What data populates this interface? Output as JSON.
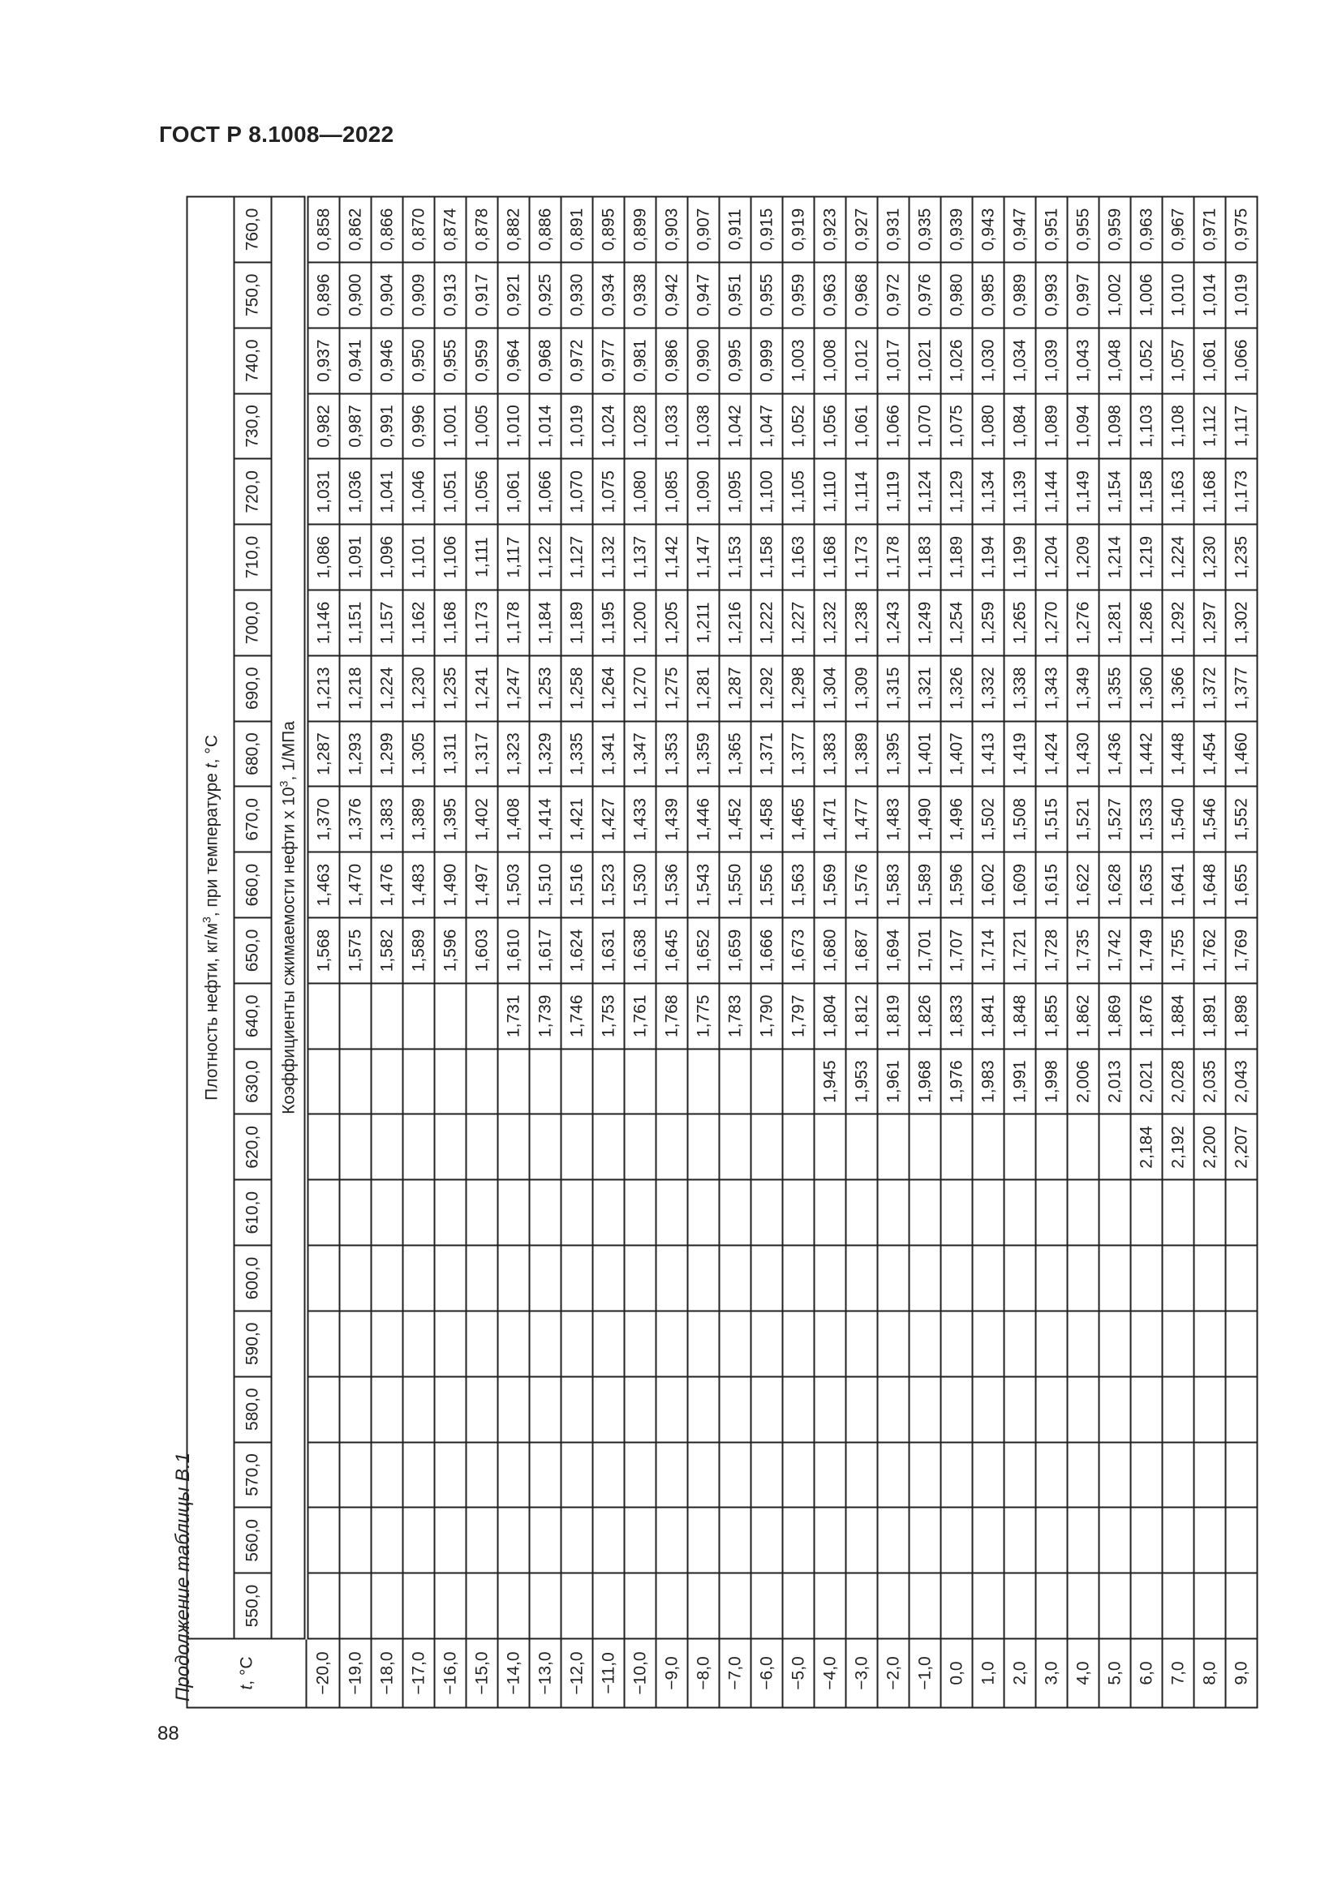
{
  "document": {
    "header": "ГОСТ Р 8.1008—2022",
    "page_number": "88",
    "caption": "Продолжение таблицы В.1"
  },
  "table": {
    "t_header_italic": "t",
    "t_header_suffix": ", °C",
    "density_heading": {
      "prefix": "Плотность нефти, кг/м",
      "sup": "3",
      "mid": ", при температуре ",
      "italic": "t",
      "suffix": ", °C"
    },
    "coef_heading": {
      "prefix": "Коэффициенты сжимаемости нефти х 10",
      "sup": "3",
      "suffix": ", 1/МПа"
    },
    "densities": [
      "550,0",
      "560,0",
      "570,0",
      "580,0",
      "590,0",
      "600,0",
      "610,0",
      "620,0",
      "630,0",
      "640,0",
      "650,0",
      "660,0",
      "670,0",
      "680,0",
      "690,0",
      "700,0",
      "710,0",
      "720,0",
      "730,0",
      "740,0",
      "750,0",
      "760,0"
    ],
    "rows": [
      {
        "t": "−20,0",
        "v": [
          null,
          null,
          null,
          null,
          null,
          null,
          null,
          null,
          null,
          null,
          "1,568",
          "1,463",
          "1,370",
          "1,287",
          "1,213",
          "1,146",
          "1,086",
          "1,031",
          "0,982",
          "0,937",
          "0,896",
          "0,858"
        ]
      },
      {
        "t": "−19,0",
        "v": [
          null,
          null,
          null,
          null,
          null,
          null,
          null,
          null,
          null,
          null,
          "1,575",
          "1,470",
          "1,376",
          "1,293",
          "1,218",
          "1,151",
          "1,091",
          "1,036",
          "0,987",
          "0,941",
          "0,900",
          "0,862"
        ]
      },
      {
        "t": "−18,0",
        "v": [
          null,
          null,
          null,
          null,
          null,
          null,
          null,
          null,
          null,
          null,
          "1,582",
          "1,476",
          "1,383",
          "1,299",
          "1,224",
          "1,157",
          "1,096",
          "1,041",
          "0,991",
          "0,946",
          "0,904",
          "0,866"
        ]
      },
      {
        "t": "−17,0",
        "v": [
          null,
          null,
          null,
          null,
          null,
          null,
          null,
          null,
          null,
          null,
          "1,589",
          "1,483",
          "1,389",
          "1,305",
          "1,230",
          "1,162",
          "1,101",
          "1,046",
          "0,996",
          "0,950",
          "0,909",
          "0,870"
        ]
      },
      {
        "t": "−16,0",
        "v": [
          null,
          null,
          null,
          null,
          null,
          null,
          null,
          null,
          null,
          null,
          "1,596",
          "1,490",
          "1,395",
          "1,311",
          "1,235",
          "1,168",
          "1,106",
          "1,051",
          "1,001",
          "0,955",
          "0,913",
          "0,874"
        ]
      },
      {
        "t": "−15,0",
        "v": [
          null,
          null,
          null,
          null,
          null,
          null,
          null,
          null,
          null,
          null,
          "1,603",
          "1,497",
          "1,402",
          "1,317",
          "1,241",
          "1,173",
          "1,111",
          "1,056",
          "1,005",
          "0,959",
          "0,917",
          "0,878"
        ]
      },
      {
        "t": "−14,0",
        "v": [
          null,
          null,
          null,
          null,
          null,
          null,
          null,
          null,
          null,
          "1,731",
          "1,610",
          "1,503",
          "1,408",
          "1,323",
          "1,247",
          "1,178",
          "1,117",
          "1,061",
          "1,010",
          "0,964",
          "0,921",
          "0,882"
        ]
      },
      {
        "t": "−13,0",
        "v": [
          null,
          null,
          null,
          null,
          null,
          null,
          null,
          null,
          null,
          "1,739",
          "1,617",
          "1,510",
          "1,414",
          "1,329",
          "1,253",
          "1,184",
          "1,122",
          "1,066",
          "1,014",
          "0,968",
          "0,925",
          "0,886"
        ]
      },
      {
        "t": "−12,0",
        "v": [
          null,
          null,
          null,
          null,
          null,
          null,
          null,
          null,
          null,
          "1,746",
          "1,624",
          "1,516",
          "1,421",
          "1,335",
          "1,258",
          "1,189",
          "1,127",
          "1,070",
          "1,019",
          "0,972",
          "0,930",
          "0,891"
        ]
      },
      {
        "t": "−11,0",
        "v": [
          null,
          null,
          null,
          null,
          null,
          null,
          null,
          null,
          null,
          "1,753",
          "1,631",
          "1,523",
          "1,427",
          "1,341",
          "1,264",
          "1,195",
          "1,132",
          "1,075",
          "1,024",
          "0,977",
          "0,934",
          "0,895"
        ]
      },
      {
        "t": "−10,0",
        "v": [
          null,
          null,
          null,
          null,
          null,
          null,
          null,
          null,
          null,
          "1,761",
          "1,638",
          "1,530",
          "1,433",
          "1,347",
          "1,270",
          "1,200",
          "1,137",
          "1,080",
          "1,028",
          "0,981",
          "0,938",
          "0,899"
        ]
      },
      {
        "t": "−9,0",
        "v": [
          null,
          null,
          null,
          null,
          null,
          null,
          null,
          null,
          null,
          "1,768",
          "1,645",
          "1,536",
          "1,439",
          "1,353",
          "1,275",
          "1,205",
          "1,142",
          "1,085",
          "1,033",
          "0,986",
          "0,942",
          "0,903"
        ]
      },
      {
        "t": "−8,0",
        "v": [
          null,
          null,
          null,
          null,
          null,
          null,
          null,
          null,
          null,
          "1,775",
          "1,652",
          "1,543",
          "1,446",
          "1,359",
          "1,281",
          "1,211",
          "1,147",
          "1,090",
          "1,038",
          "0,990",
          "0,947",
          "0,907"
        ]
      },
      {
        "t": "−7,0",
        "v": [
          null,
          null,
          null,
          null,
          null,
          null,
          null,
          null,
          null,
          "1,783",
          "1,659",
          "1,550",
          "1,452",
          "1,365",
          "1,287",
          "1,216",
          "1,153",
          "1,095",
          "1,042",
          "0,995",
          "0,951",
          "0,911"
        ]
      },
      {
        "t": "−6,0",
        "v": [
          null,
          null,
          null,
          null,
          null,
          null,
          null,
          null,
          null,
          "1,790",
          "1,666",
          "1,556",
          "1,458",
          "1,371",
          "1,292",
          "1,222",
          "1,158",
          "1,100",
          "1,047",
          "0,999",
          "0,955",
          "0,915"
        ]
      },
      {
        "t": "−5,0",
        "v": [
          null,
          null,
          null,
          null,
          null,
          null,
          null,
          null,
          null,
          "1,797",
          "1,673",
          "1,563",
          "1,465",
          "1,377",
          "1,298",
          "1,227",
          "1,163",
          "1,105",
          "1,052",
          "1,003",
          "0,959",
          "0,919"
        ]
      },
      {
        "t": "−4,0",
        "v": [
          null,
          null,
          null,
          null,
          null,
          null,
          null,
          null,
          "1,945",
          "1,804",
          "1,680",
          "1,569",
          "1,471",
          "1,383",
          "1,304",
          "1,232",
          "1,168",
          "1,110",
          "1,056",
          "1,008",
          "0,963",
          "0,923"
        ]
      },
      {
        "t": "−3,0",
        "v": [
          null,
          null,
          null,
          null,
          null,
          null,
          null,
          null,
          "1,953",
          "1,812",
          "1,687",
          "1,576",
          "1,477",
          "1,389",
          "1,309",
          "1,238",
          "1,173",
          "1,114",
          "1,061",
          "1,012",
          "0,968",
          "0,927"
        ]
      },
      {
        "t": "−2,0",
        "v": [
          null,
          null,
          null,
          null,
          null,
          null,
          null,
          null,
          "1,961",
          "1,819",
          "1,694",
          "1,583",
          "1,483",
          "1,395",
          "1,315",
          "1,243",
          "1,178",
          "1,119",
          "1,066",
          "1,017",
          "0,972",
          "0,931"
        ]
      },
      {
        "t": "−1,0",
        "v": [
          null,
          null,
          null,
          null,
          null,
          null,
          null,
          null,
          "1,968",
          "1,826",
          "1,701",
          "1,589",
          "1,490",
          "1,401",
          "1,321",
          "1,249",
          "1,183",
          "1,124",
          "1,070",
          "1,021",
          "0,976",
          "0,935"
        ]
      },
      {
        "t": "0,0",
        "v": [
          null,
          null,
          null,
          null,
          null,
          null,
          null,
          null,
          "1,976",
          "1,833",
          "1,707",
          "1,596",
          "1,496",
          "1,407",
          "1,326",
          "1,254",
          "1,189",
          "1,129",
          "1,075",
          "1,026",
          "0,980",
          "0,939"
        ]
      },
      {
        "t": "1,0",
        "v": [
          null,
          null,
          null,
          null,
          null,
          null,
          null,
          null,
          "1,983",
          "1,841",
          "1,714",
          "1,602",
          "1,502",
          "1,413",
          "1,332",
          "1,259",
          "1,194",
          "1,134",
          "1,080",
          "1,030",
          "0,985",
          "0,943"
        ]
      },
      {
        "t": "2,0",
        "v": [
          null,
          null,
          null,
          null,
          null,
          null,
          null,
          null,
          "1,991",
          "1,848",
          "1,721",
          "1,609",
          "1,508",
          "1,419",
          "1,338",
          "1,265",
          "1,199",
          "1,139",
          "1,084",
          "1,034",
          "0,989",
          "0,947"
        ]
      },
      {
        "t": "3,0",
        "v": [
          null,
          null,
          null,
          null,
          null,
          null,
          null,
          null,
          "1,998",
          "1,855",
          "1,728",
          "1,615",
          "1,515",
          "1,424",
          "1,343",
          "1,270",
          "1,204",
          "1,144",
          "1,089",
          "1,039",
          "0,993",
          "0,951"
        ]
      },
      {
        "t": "4,0",
        "v": [
          null,
          null,
          null,
          null,
          null,
          null,
          null,
          null,
          "2,006",
          "1,862",
          "1,735",
          "1,622",
          "1,521",
          "1,430",
          "1,349",
          "1,276",
          "1,209",
          "1,149",
          "1,094",
          "1,043",
          "0,997",
          "0,955"
        ]
      },
      {
        "t": "5,0",
        "v": [
          null,
          null,
          null,
          null,
          null,
          null,
          null,
          null,
          "2,013",
          "1,869",
          "1,742",
          "1,628",
          "1,527",
          "1,436",
          "1,355",
          "1,281",
          "1,214",
          "1,154",
          "1,098",
          "1,048",
          "1,002",
          "0,959"
        ]
      },
      {
        "t": "6,0",
        "v": [
          null,
          null,
          null,
          null,
          null,
          null,
          null,
          "2,184",
          "2,021",
          "1,876",
          "1,749",
          "1,635",
          "1,533",
          "1,442",
          "1,360",
          "1,286",
          "1,219",
          "1,158",
          "1,103",
          "1,052",
          "1,006",
          "0,963"
        ]
      },
      {
        "t": "7,0",
        "v": [
          null,
          null,
          null,
          null,
          null,
          null,
          null,
          "2,192",
          "2,028",
          "1,884",
          "1,755",
          "1,641",
          "1,540",
          "1,448",
          "1,366",
          "1,292",
          "1,224",
          "1,163",
          "1,108",
          "1,057",
          "1,010",
          "0,967"
        ]
      },
      {
        "t": "8,0",
        "v": [
          null,
          null,
          null,
          null,
          null,
          null,
          null,
          "2,200",
          "2,035",
          "1,891",
          "1,762",
          "1,648",
          "1,546",
          "1,454",
          "1,372",
          "1,297",
          "1,230",
          "1,168",
          "1,112",
          "1,061",
          "1,014",
          "0,971"
        ]
      },
      {
        "t": "9,0",
        "v": [
          null,
          null,
          null,
          null,
          null,
          null,
          null,
          "2,207",
          "2,043",
          "1,898",
          "1,769",
          "1,655",
          "1,552",
          "1,460",
          "1,377",
          "1,302",
          "1,235",
          "1,173",
          "1,117",
          "1,066",
          "1,019",
          "0,975"
        ]
      }
    ]
  }
}
